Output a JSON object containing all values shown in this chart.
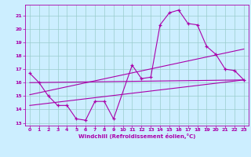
{
  "xlabel": "Windchill (Refroidissement éolien,°C)",
  "bg_color": "#cceeff",
  "line_color": "#aa00aa",
  "grid_color": "#99cccc",
  "xlim": [
    -0.5,
    23.5
  ],
  "ylim": [
    12.8,
    21.8
  ],
  "xticks": [
    0,
    1,
    2,
    3,
    4,
    5,
    6,
    7,
    8,
    9,
    10,
    11,
    12,
    13,
    14,
    15,
    16,
    17,
    18,
    19,
    20,
    21,
    22,
    23
  ],
  "yticks": [
    13,
    14,
    15,
    16,
    17,
    18,
    19,
    20,
    21
  ],
  "line1_x": [
    0,
    1,
    2,
    3,
    4,
    5,
    6,
    7,
    8,
    9,
    11,
    12,
    13,
    14,
    15,
    16,
    17,
    18,
    19,
    20,
    21,
    22,
    23
  ],
  "line1_y": [
    16.7,
    16.0,
    15.0,
    14.3,
    14.3,
    13.3,
    13.2,
    14.6,
    14.6,
    13.3,
    17.3,
    16.3,
    16.4,
    20.3,
    21.2,
    21.4,
    20.4,
    20.3,
    18.7,
    18.1,
    17.0,
    16.9,
    16.2
  ],
  "line2_x": [
    0,
    23
  ],
  "line2_y": [
    16.0,
    16.2
  ],
  "line3_x": [
    0,
    23
  ],
  "line3_y": [
    15.1,
    18.5
  ],
  "line4_x": [
    0,
    23
  ],
  "line4_y": [
    14.3,
    16.2
  ]
}
